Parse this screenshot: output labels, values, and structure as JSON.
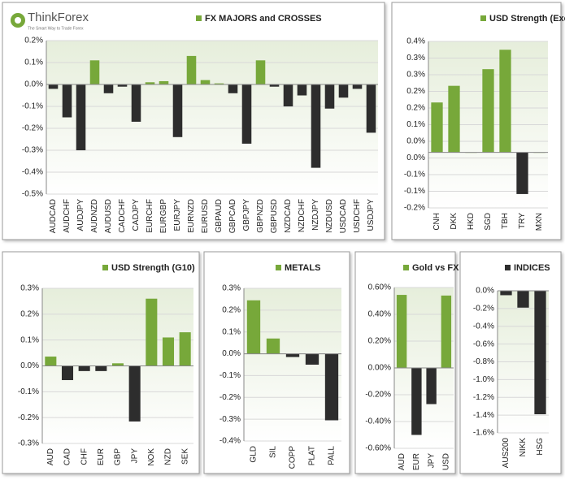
{
  "logo": {
    "name": "ThinkForex",
    "tagline": "The Smart Way to Trade Forex"
  },
  "chart_data": [
    {
      "type": "bar",
      "title": "FX MAJORS and CROSSES",
      "categories": [
        "AUDCAD",
        "AUDCHF",
        "AUDJPY",
        "AUDNZD",
        "AUDUSD",
        "CADCHF",
        "CADJPY",
        "EURCHF",
        "EURGBP",
        "EURJPY",
        "EURNZD",
        "EURUSD",
        "GBPAUD",
        "GBPCAD",
        "GBPJPY",
        "GBPNZD",
        "GBPUSD",
        "NZDCAD",
        "NZDCHF",
        "NZDJPY",
        "NZDUSD",
        "USDCAD",
        "USDCHF",
        "USDJPY"
      ],
      "values": [
        -0.02,
        -0.15,
        -0.3,
        0.11,
        -0.04,
        -0.01,
        -0.17,
        0.01,
        0.015,
        -0.24,
        0.13,
        0.02,
        0.005,
        -0.04,
        -0.27,
        0.11,
        -0.01,
        -0.1,
        -0.05,
        -0.38,
        -0.11,
        -0.06,
        -0.02,
        -0.22
      ],
      "ylim": [
        -0.5,
        0.2
      ],
      "yticks": [
        {
          "value": 0.2,
          "label": "0.2%"
        },
        {
          "value": 0.1,
          "label": "0.1%"
        },
        {
          "value": 0,
          "label": "0.0%"
        },
        {
          "value": -0.1,
          "label": "-0.1%"
        },
        {
          "value": -0.2,
          "label": "-0.2%"
        },
        {
          "value": -0.3,
          "label": "-0.3%"
        },
        {
          "value": -0.4,
          "label": "-0.4%"
        },
        {
          "value": -0.5,
          "label": "-0.5%"
        }
      ],
      "positive_color": "#77a83a",
      "negative_color": "#2d2d2d"
    },
    {
      "type": "bar",
      "title": "USD Strength (Exotics)",
      "categories": [
        "CNH",
        "DKK",
        "HKD",
        "SGD",
        "TBH",
        "TRY",
        "MXN"
      ],
      "values": [
        0.18,
        0.24,
        0,
        0.3,
        0.37,
        -0.15,
        0
      ],
      "ylim": [
        -0.2,
        0.4
      ],
      "yticks": [
        {
          "value": 0.4,
          "label": "0.4%"
        },
        {
          "value": 0.34,
          "label": "0.3%"
        },
        {
          "value": 0.28,
          "label": "0.3%"
        },
        {
          "value": 0.22,
          "label": "0.2%"
        },
        {
          "value": 0.16,
          "label": "0.2%"
        },
        {
          "value": 0.1,
          "label": "0.1%"
        },
        {
          "value": 0.04,
          "label": "0.0%"
        },
        {
          "value": -0.02,
          "label": "0.0%"
        },
        {
          "value": -0.08,
          "label": "-0.1%"
        },
        {
          "value": -0.14,
          "label": "-0.1%"
        },
        {
          "value": -0.2,
          "label": "-0.2%"
        }
      ],
      "positive_color": "#77a83a",
      "negative_color": "#2d2d2d"
    },
    {
      "type": "bar",
      "title": "USD Strength (G10)",
      "categories": [
        "AUD",
        "CAD",
        "CHF",
        "EUR",
        "GBP",
        "JPY",
        "NOK",
        "NZD",
        "SEK"
      ],
      "values": [
        0.036,
        -0.055,
        -0.02,
        -0.02,
        0.01,
        -0.215,
        0.26,
        0.11,
        0.13
      ],
      "ylim": [
        -0.3,
        0.3
      ],
      "yticks": [
        {
          "value": 0.3,
          "label": "0.3%"
        },
        {
          "value": 0.2,
          "label": "0.2%"
        },
        {
          "value": 0.1,
          "label": "0.1%"
        },
        {
          "value": 0,
          "label": "0.0%"
        },
        {
          "value": -0.1,
          "label": "-0.1%"
        },
        {
          "value": -0.2,
          "label": "-0.2%"
        },
        {
          "value": -0.3,
          "label": "-0.3%"
        }
      ],
      "positive_color": "#77a83a",
      "negative_color": "#2d2d2d"
    },
    {
      "type": "bar",
      "title": "METALS",
      "categories": [
        "GLD",
        "SIL",
        "COPP",
        "PLAT",
        "PALL"
      ],
      "values": [
        0.245,
        0.07,
        -0.015,
        -0.05,
        -0.305
      ],
      "ylim": [
        -0.4,
        0.3
      ],
      "yticks": [
        {
          "value": 0.3,
          "label": "0.3%"
        },
        {
          "value": 0.2,
          "label": "0.2%"
        },
        {
          "value": 0.1,
          "label": "0.1%"
        },
        {
          "value": 0,
          "label": "0.0%"
        },
        {
          "value": -0.1,
          "label": "-0.1%"
        },
        {
          "value": -0.2,
          "label": "-0.2%"
        },
        {
          "value": -0.3,
          "label": "-0.3%"
        },
        {
          "value": -0.4,
          "label": "-0.4%"
        }
      ],
      "positive_color": "#77a83a",
      "negative_color": "#2d2d2d"
    },
    {
      "type": "bar",
      "title": "Gold vs FX",
      "categories": [
        "AUD",
        "EUR",
        "JPY",
        "USD"
      ],
      "values": [
        0.545,
        -0.5,
        -0.27,
        0.54
      ],
      "ylim": [
        -0.6,
        0.6
      ],
      "yticks": [
        {
          "value": 0.6,
          "label": "0.60%"
        },
        {
          "value": 0.4,
          "label": "0.40%"
        },
        {
          "value": 0.2,
          "label": "0.20%"
        },
        {
          "value": 0,
          "label": "0.00%"
        },
        {
          "value": -0.2,
          "label": "-0.20%"
        },
        {
          "value": -0.4,
          "label": "-0.40%"
        },
        {
          "value": -0.6,
          "label": "-0.60%"
        }
      ],
      "positive_color": "#77a83a",
      "negative_color": "#2d2d2d"
    },
    {
      "type": "bar",
      "title": "INDICES",
      "categories": [
        "AUS200",
        "NIKK",
        "HSG"
      ],
      "values": [
        -0.05,
        -0.19,
        -1.39
      ],
      "ylim": [
        -1.6,
        0
      ],
      "yticks": [
        {
          "value": 0,
          "label": "0.0%"
        },
        {
          "value": -0.2,
          "label": "-0.2%"
        },
        {
          "value": -0.4,
          "label": "-0.4%"
        },
        {
          "value": -0.6,
          "label": "-0.6%"
        },
        {
          "value": -0.8,
          "label": "-0.8%"
        },
        {
          "value": -1.0,
          "label": "-1.0%"
        },
        {
          "value": -1.2,
          "label": "-1.2%"
        },
        {
          "value": -1.4,
          "label": "-1.4%"
        },
        {
          "value": -1.6,
          "label": "-1.6%"
        }
      ],
      "positive_color": "#2d2d2d",
      "negative_color": "#2d2d2d"
    }
  ]
}
